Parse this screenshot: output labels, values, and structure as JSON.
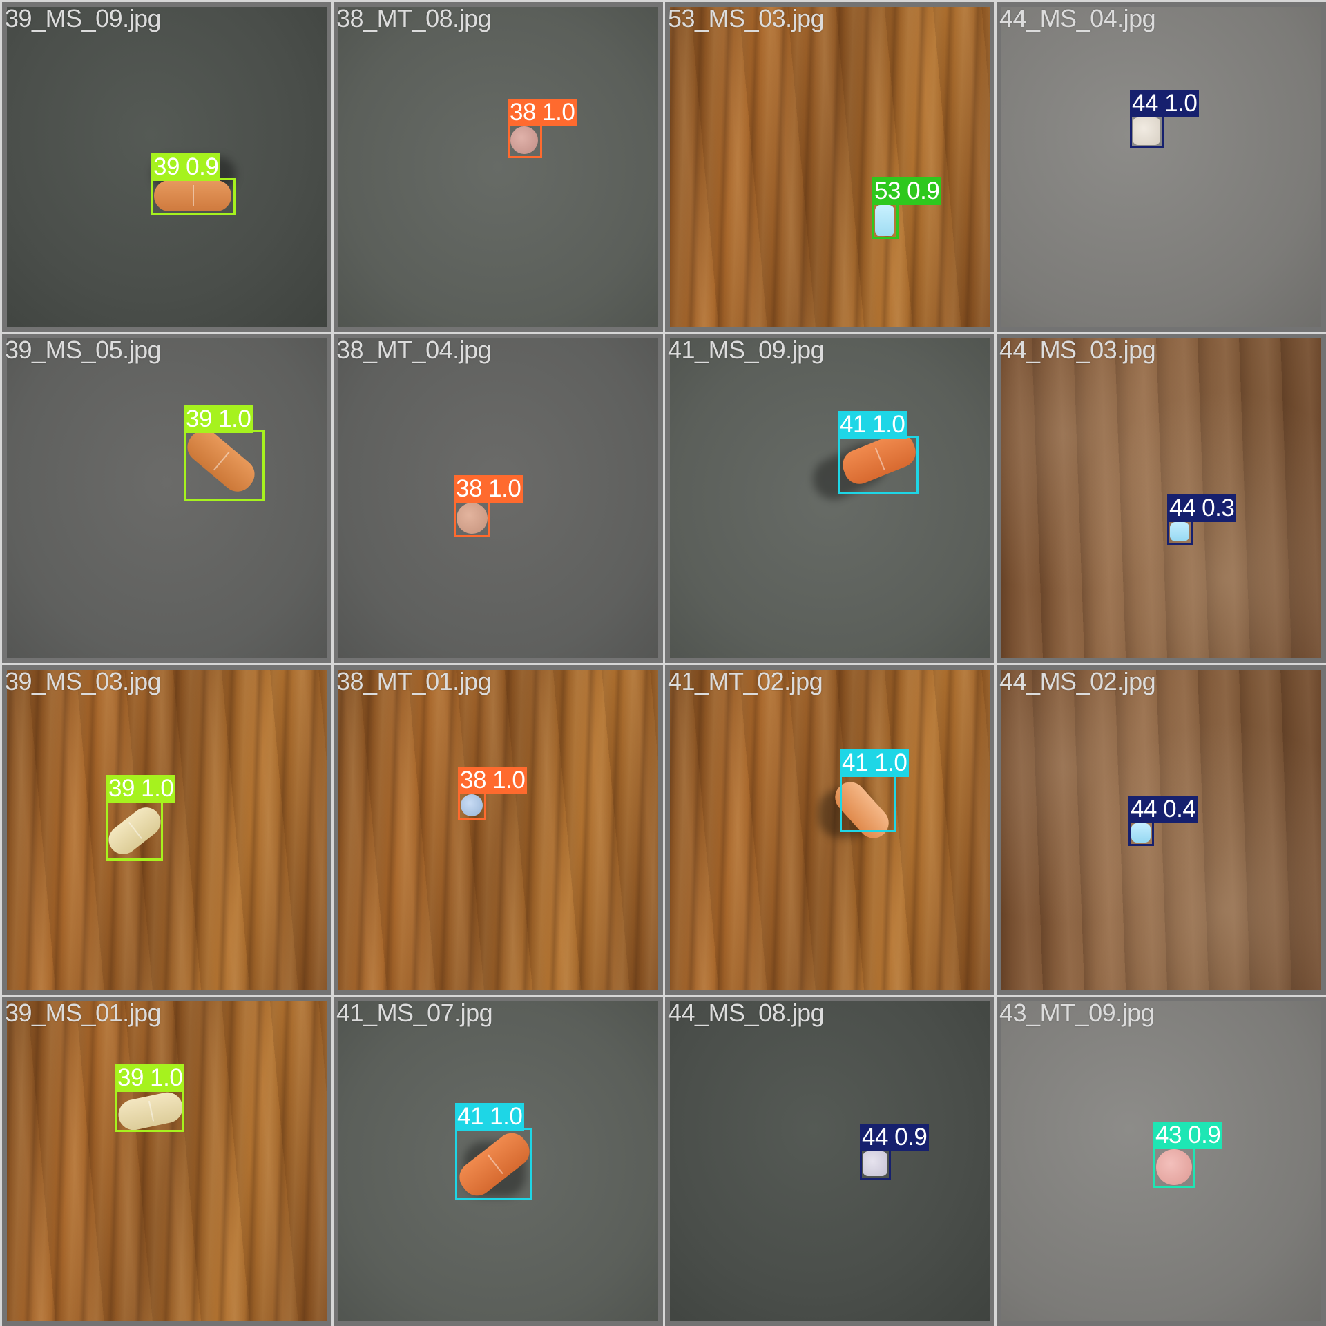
{
  "colors": {
    "class_38": "#ff6a2e",
    "class_39": "#a6f21e",
    "class_41": "#1ed6e6",
    "class_43": "#1ee6b4",
    "class_44": "#16206e",
    "class_53": "#2ec81e"
  },
  "tiles": [
    {
      "filename": "39_MS_09.jpg",
      "detection": {
        "label": "39 0.9"
      }
    },
    {
      "filename": "38_MT_08.jpg",
      "detection": {
        "label": "38 1.0"
      }
    },
    {
      "filename": "53_MS_03.jpg",
      "detection": {
        "label": "53 0.9"
      }
    },
    {
      "filename": "44_MS_04.jpg",
      "detection": {
        "label": "44 1.0"
      }
    },
    {
      "filename": "39_MS_05.jpg",
      "detection": {
        "label": "39 1.0"
      }
    },
    {
      "filename": "38_MT_04.jpg",
      "detection": {
        "label": "38 1.0"
      }
    },
    {
      "filename": "41_MS_09.jpg",
      "detection": {
        "label": "41 1.0"
      }
    },
    {
      "filename": "44_MS_03.jpg",
      "detection": {
        "label": "44 0.3"
      }
    },
    {
      "filename": "39_MS_03.jpg",
      "detection": {
        "label": "39 1.0"
      }
    },
    {
      "filename": "38_MT_01.jpg",
      "detection": {
        "label": "38 1.0"
      }
    },
    {
      "filename": "41_MT_02.jpg",
      "detection": {
        "label": "41 1.0"
      }
    },
    {
      "filename": "44_MS_02.jpg",
      "detection": {
        "label": "44 0.4"
      }
    },
    {
      "filename": "39_MS_01.jpg",
      "detection": {
        "label": "39 1.0"
      }
    },
    {
      "filename": "41_MS_07.jpg",
      "detection": {
        "label": "41 1.0"
      }
    },
    {
      "filename": "44_MS_08.jpg",
      "detection": {
        "label": "44 0.9"
      }
    },
    {
      "filename": "43_MT_09.jpg",
      "detection": {
        "label": "43 0.9"
      }
    }
  ]
}
